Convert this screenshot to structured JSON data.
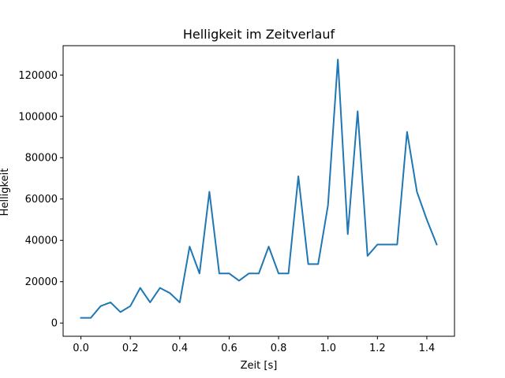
{
  "chart_data": {
    "type": "line",
    "title": "Helligkeit im Zeitverlauf",
    "xlabel": "Zeit [s]",
    "ylabel": "Helligkeit",
    "xlim": [
      -0.072,
      1.512
    ],
    "ylim": [
      -6400,
      134200
    ],
    "x_ticks": [
      0.0,
      0.2,
      0.4,
      0.6,
      0.8,
      1.0,
      1.2,
      1.4
    ],
    "x_tick_labels": [
      "0.0",
      "0.2",
      "0.4",
      "0.6",
      "0.8",
      "1.0",
      "1.2",
      "1.4"
    ],
    "y_ticks": [
      0,
      20000,
      40000,
      60000,
      80000,
      100000,
      120000
    ],
    "y_tick_labels": [
      "0",
      "20000",
      "40000",
      "60000",
      "80000",
      "100000",
      "120000"
    ],
    "grid": false,
    "line_color": "#1f77b4",
    "series": [
      {
        "x": [
          0.0,
          0.04,
          0.08,
          0.12,
          0.16,
          0.2,
          0.24,
          0.28,
          0.32,
          0.36,
          0.4,
          0.44,
          0.48,
          0.52,
          0.56,
          0.6,
          0.64,
          0.68,
          0.72,
          0.76,
          0.8,
          0.84,
          0.88,
          0.92,
          0.96,
          1.0,
          1.04,
          1.08,
          1.12,
          1.16,
          1.2,
          1.24,
          1.28,
          1.32,
          1.36,
          1.4,
          1.44
        ],
        "values": [
          2500,
          2500,
          8200,
          10000,
          5300,
          8200,
          17000,
          10000,
          17000,
          14500,
          10000,
          37000,
          24000,
          63500,
          24000,
          24000,
          20500,
          24000,
          24000,
          37000,
          24000,
          24000,
          71000,
          28500,
          28500,
          57000,
          127500,
          43000,
          102500,
          32500,
          38000,
          38000,
          38000,
          92500,
          63500,
          50000,
          38000
        ]
      }
    ]
  }
}
